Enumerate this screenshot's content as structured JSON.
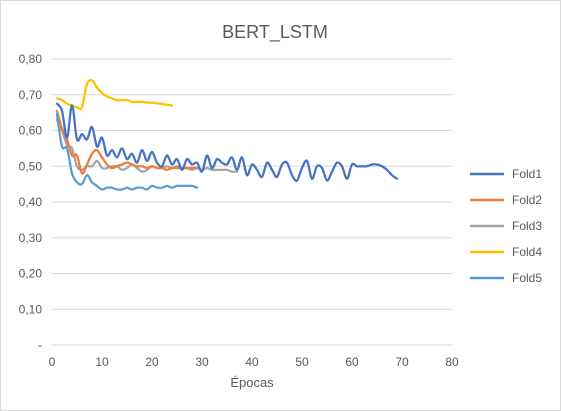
{
  "chart_data": {
    "type": "line",
    "title": "BERT_LSTM",
    "xlabel": "Épocas",
    "ylabel": "",
    "xlim": [
      0,
      80
    ],
    "ylim": [
      0,
      0.8
    ],
    "x_ticks": [
      "0",
      "10",
      "20",
      "30",
      "40",
      "50",
      "60",
      "70",
      "80"
    ],
    "y_ticks": [
      "-",
      "0,10",
      "0,20",
      "0,30",
      "0,40",
      "0,50",
      "0,60",
      "0,70",
      "0,80"
    ],
    "grid": "horizontal",
    "legend_position": "right",
    "series": [
      {
        "name": "Fold1",
        "color": "#4472C4",
        "x": [
          1,
          2,
          3,
          4,
          5,
          6,
          7,
          8,
          9,
          10,
          11,
          12,
          13,
          14,
          15,
          16,
          17,
          18,
          19,
          20,
          21,
          22,
          23,
          24,
          25,
          26,
          27,
          28,
          29,
          30,
          31,
          32,
          33,
          34,
          35,
          36,
          37,
          38,
          39,
          40,
          41,
          42,
          43,
          44,
          45,
          46,
          47,
          48,
          49,
          50,
          51,
          52,
          53,
          54,
          55,
          56,
          57,
          58,
          59,
          60,
          61,
          62,
          63,
          64,
          65,
          66,
          67,
          68,
          69
        ],
        "y": [
          0.675,
          0.655,
          0.58,
          0.67,
          0.575,
          0.59,
          0.575,
          0.61,
          0.555,
          0.58,
          0.53,
          0.545,
          0.525,
          0.55,
          0.52,
          0.535,
          0.51,
          0.545,
          0.515,
          0.54,
          0.51,
          0.5,
          0.53,
          0.505,
          0.52,
          0.49,
          0.52,
          0.505,
          0.51,
          0.485,
          0.53,
          0.495,
          0.52,
          0.51,
          0.505,
          0.525,
          0.49,
          0.525,
          0.475,
          0.505,
          0.49,
          0.47,
          0.51,
          0.49,
          0.47,
          0.505,
          0.51,
          0.475,
          0.46,
          0.495,
          0.515,
          0.465,
          0.5,
          0.495,
          0.46,
          0.485,
          0.51,
          0.5,
          0.465,
          0.505,
          0.5,
          0.5,
          0.5,
          0.505,
          0.505,
          0.5,
          0.49,
          0.475,
          0.465
        ]
      },
      {
        "name": "Fold2",
        "color": "#ED7D31",
        "x": [
          1,
          2,
          3,
          4,
          5,
          6,
          7,
          8,
          9,
          10,
          11,
          12,
          13,
          14,
          15,
          16,
          17,
          18,
          19,
          20,
          21,
          22,
          23,
          24,
          25,
          26,
          27,
          28,
          29
        ],
        "y": [
          0.655,
          0.605,
          0.575,
          0.53,
          0.53,
          0.48,
          0.505,
          0.535,
          0.545,
          0.525,
          0.505,
          0.495,
          0.5,
          0.505,
          0.51,
          0.505,
          0.5,
          0.5,
          0.495,
          0.5,
          0.495,
          0.495,
          0.49,
          0.495,
          0.495,
          0.495,
          0.495,
          0.495,
          0.495
        ]
      },
      {
        "name": "Fold3",
        "color": "#A5A5A5",
        "x": [
          1,
          2,
          3,
          4,
          5,
          6,
          7,
          8,
          9,
          10,
          11,
          12,
          13,
          14,
          15,
          16,
          17,
          18,
          19,
          20,
          21,
          22,
          23,
          24,
          25,
          26,
          27,
          28,
          29,
          30,
          31,
          32,
          33,
          34,
          35,
          36,
          37
        ],
        "y": [
          0.63,
          0.6,
          0.56,
          0.55,
          0.5,
          0.49,
          0.5,
          0.5,
          0.515,
          0.495,
          0.495,
          0.5,
          0.5,
          0.49,
          0.495,
          0.505,
          0.495,
          0.485,
          0.49,
          0.5,
          0.495,
          0.495,
          0.5,
          0.495,
          0.5,
          0.495,
          0.495,
          0.49,
          0.495,
          0.49,
          0.495,
          0.49,
          0.49,
          0.49,
          0.49,
          0.485,
          0.485
        ]
      },
      {
        "name": "Fold4",
        "color": "#FFC000",
        "x": [
          1,
          2,
          3,
          4,
          5,
          6,
          7,
          8,
          9,
          10,
          11,
          12,
          13,
          14,
          15,
          16,
          17,
          18,
          19,
          20,
          21,
          22,
          23,
          24
        ],
        "y": [
          0.69,
          0.685,
          0.675,
          0.67,
          0.665,
          0.665,
          0.73,
          0.74,
          0.72,
          0.705,
          0.695,
          0.69,
          0.685,
          0.685,
          0.685,
          0.68,
          0.68,
          0.68,
          0.678,
          0.678,
          0.676,
          0.674,
          0.672,
          0.67
        ]
      },
      {
        "name": "Fold5",
        "color": "#5B9BD5",
        "x": [
          1,
          2,
          3,
          4,
          5,
          6,
          7,
          8,
          9,
          10,
          11,
          12,
          13,
          14,
          15,
          16,
          17,
          18,
          19,
          20,
          21,
          22,
          23,
          24,
          25,
          26,
          27,
          28,
          29
        ],
        "y": [
          0.645,
          0.555,
          0.55,
          0.48,
          0.455,
          0.45,
          0.475,
          0.455,
          0.445,
          0.435,
          0.44,
          0.44,
          0.435,
          0.435,
          0.44,
          0.435,
          0.44,
          0.44,
          0.435,
          0.445,
          0.44,
          0.44,
          0.445,
          0.44,
          0.445,
          0.445,
          0.445,
          0.445,
          0.44
        ]
      }
    ]
  }
}
